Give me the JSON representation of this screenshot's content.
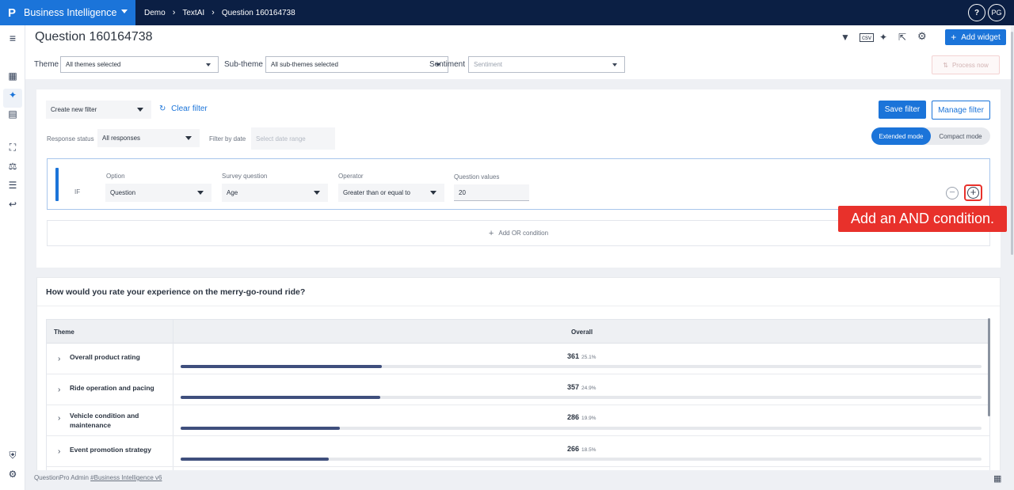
{
  "topbar": {
    "app_name": "Business Intelligence",
    "breadcrumb": [
      "Demo",
      "TextAI",
      "Question 160164738"
    ],
    "help_label": "?",
    "user_initials": "PG"
  },
  "header": {
    "title": "Question 160164738",
    "add_widget_label": "Add widget",
    "process_now_label": "Process now",
    "filters": {
      "theme_label": "Theme",
      "theme_value": "All themes selected",
      "subtheme_label": "Sub-theme",
      "subtheme_value": "All sub-themes selected",
      "sentiment_label": "Sentiment",
      "sentiment_placeholder": "Sentiment"
    }
  },
  "filter_panel": {
    "create_filter_label": "Create new filter",
    "clear_filter_label": "Clear filter",
    "save_filter_label": "Save filter",
    "manage_filter_label": "Manage filter",
    "response_status_label": "Response status",
    "response_status_value": "All responses",
    "filter_by_date_label": "Filter by date",
    "date_placeholder": "Select date range",
    "mode_extended": "Extended mode",
    "mode_compact": "Compact mode",
    "condition": {
      "if_label": "IF",
      "option_label": "Option",
      "option_value": "Question",
      "survey_question_label": "Survey question",
      "survey_question_value": "Age",
      "operator_label": "Operator",
      "operator_value": "Greater than or equal to",
      "question_values_label": "Question values",
      "question_values_value": "20"
    },
    "add_or_label": "Add OR condition"
  },
  "tooltip": "Add an AND condition.",
  "widget": {
    "title": "How would you rate your experience on the merry-go-round ride?",
    "col_theme": "Theme",
    "col_overall": "Overall",
    "rows": [
      {
        "theme": "Overall product rating",
        "count": "361",
        "pct": "25.1%",
        "fraction": 0.251
      },
      {
        "theme": "Ride operation and pacing",
        "count": "357",
        "pct": "24.9%",
        "fraction": 0.249
      },
      {
        "theme": "Vehicle condition and maintenance",
        "count": "286",
        "pct": "19.9%",
        "fraction": 0.199
      },
      {
        "theme": "Event promotion strategy",
        "count": "266",
        "pct": "18.5%",
        "fraction": 0.185
      }
    ]
  },
  "footer": {
    "text": "QuestionPro Admin",
    "link": "#Business Intelligence v6"
  },
  "colors": {
    "accent": "#1b74d9",
    "topbar": "#0b1f44",
    "highlight": "#e8312b",
    "bar_fill": "#3f4f7d"
  }
}
